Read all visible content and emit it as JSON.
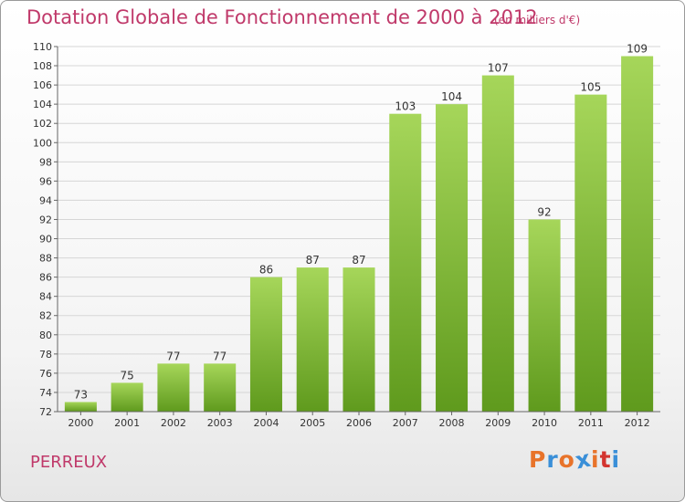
{
  "header": {
    "title": "Dotation Globale de Fonctionnement de 2000 à 2012",
    "unit_note": "(en milliers d'€)"
  },
  "footer": {
    "commune": "PERREUX",
    "logo_text": "Proxiti",
    "logo_colors": [
      "#e8732a",
      "#3a8fd8",
      "#e8732a",
      "#3a8fd8",
      "#e8732a",
      "#d3342f",
      "#3a8fd8"
    ]
  },
  "chart_data": {
    "type": "bar",
    "categories": [
      "2000",
      "2001",
      "2002",
      "2003",
      "2004",
      "2005",
      "2006",
      "2007",
      "2008",
      "2009",
      "2010",
      "2011",
      "2012"
    ],
    "values": [
      73,
      75,
      77,
      77,
      86,
      87,
      87,
      103,
      104,
      107,
      92,
      105,
      109
    ],
    "ylim": [
      72,
      110
    ],
    "yticks": [
      72,
      74,
      76,
      78,
      80,
      82,
      84,
      86,
      88,
      90,
      92,
      94,
      96,
      98,
      100,
      102,
      104,
      106,
      108,
      110
    ],
    "grid": true,
    "bar_color_top": "#a6d65a",
    "bar_color_bottom": "#5f9a1d"
  }
}
